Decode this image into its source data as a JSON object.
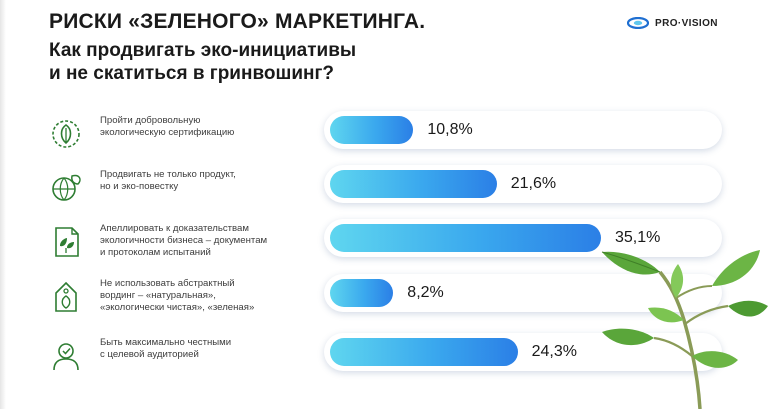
{
  "header": {
    "title": "РИСКИ «ЗЕЛЕНОГО» МАРКЕТИНГА.",
    "subtitle_line1": "Как продвигать эко-инициативы",
    "subtitle_line2": "и не скатиться в гринвошинг?"
  },
  "logo": {
    "text": "PRO·VISION"
  },
  "colors": {
    "bar_start": "#5fd6ef",
    "bar_end": "#2b7fe6",
    "icon": "#2e7d32"
  },
  "chart_data": {
    "type": "bar",
    "orientation": "horizontal",
    "unit": "%",
    "categories": [
      [
        "Пройти добровольную",
        "экологическую сертификацию"
      ],
      [
        "Продвигать не только продукт,",
        "но и эко-повестку"
      ],
      [
        "Апеллировать к доказательствам",
        "экологичности бизнеса – документам",
        "и протоколам испытаний"
      ],
      [
        "Не использовать абстрактный",
        "вординг – «натуральная»,",
        "«экологически чистая», «зеленая»"
      ],
      [
        "Быть максимально честными",
        "с целевой аудиторией"
      ]
    ],
    "values": [
      10.8,
      21.6,
      35.1,
      8.2,
      24.3
    ],
    "labels": [
      "10,8%",
      "21,6%",
      "35,1%",
      "8,2%",
      "24,3%"
    ],
    "icons": [
      "leaf-badge-icon",
      "globe-leaf-icon",
      "document-leaf-icon",
      "eco-tag-icon",
      "person-check-icon"
    ],
    "xlim": [
      0,
      50
    ]
  }
}
